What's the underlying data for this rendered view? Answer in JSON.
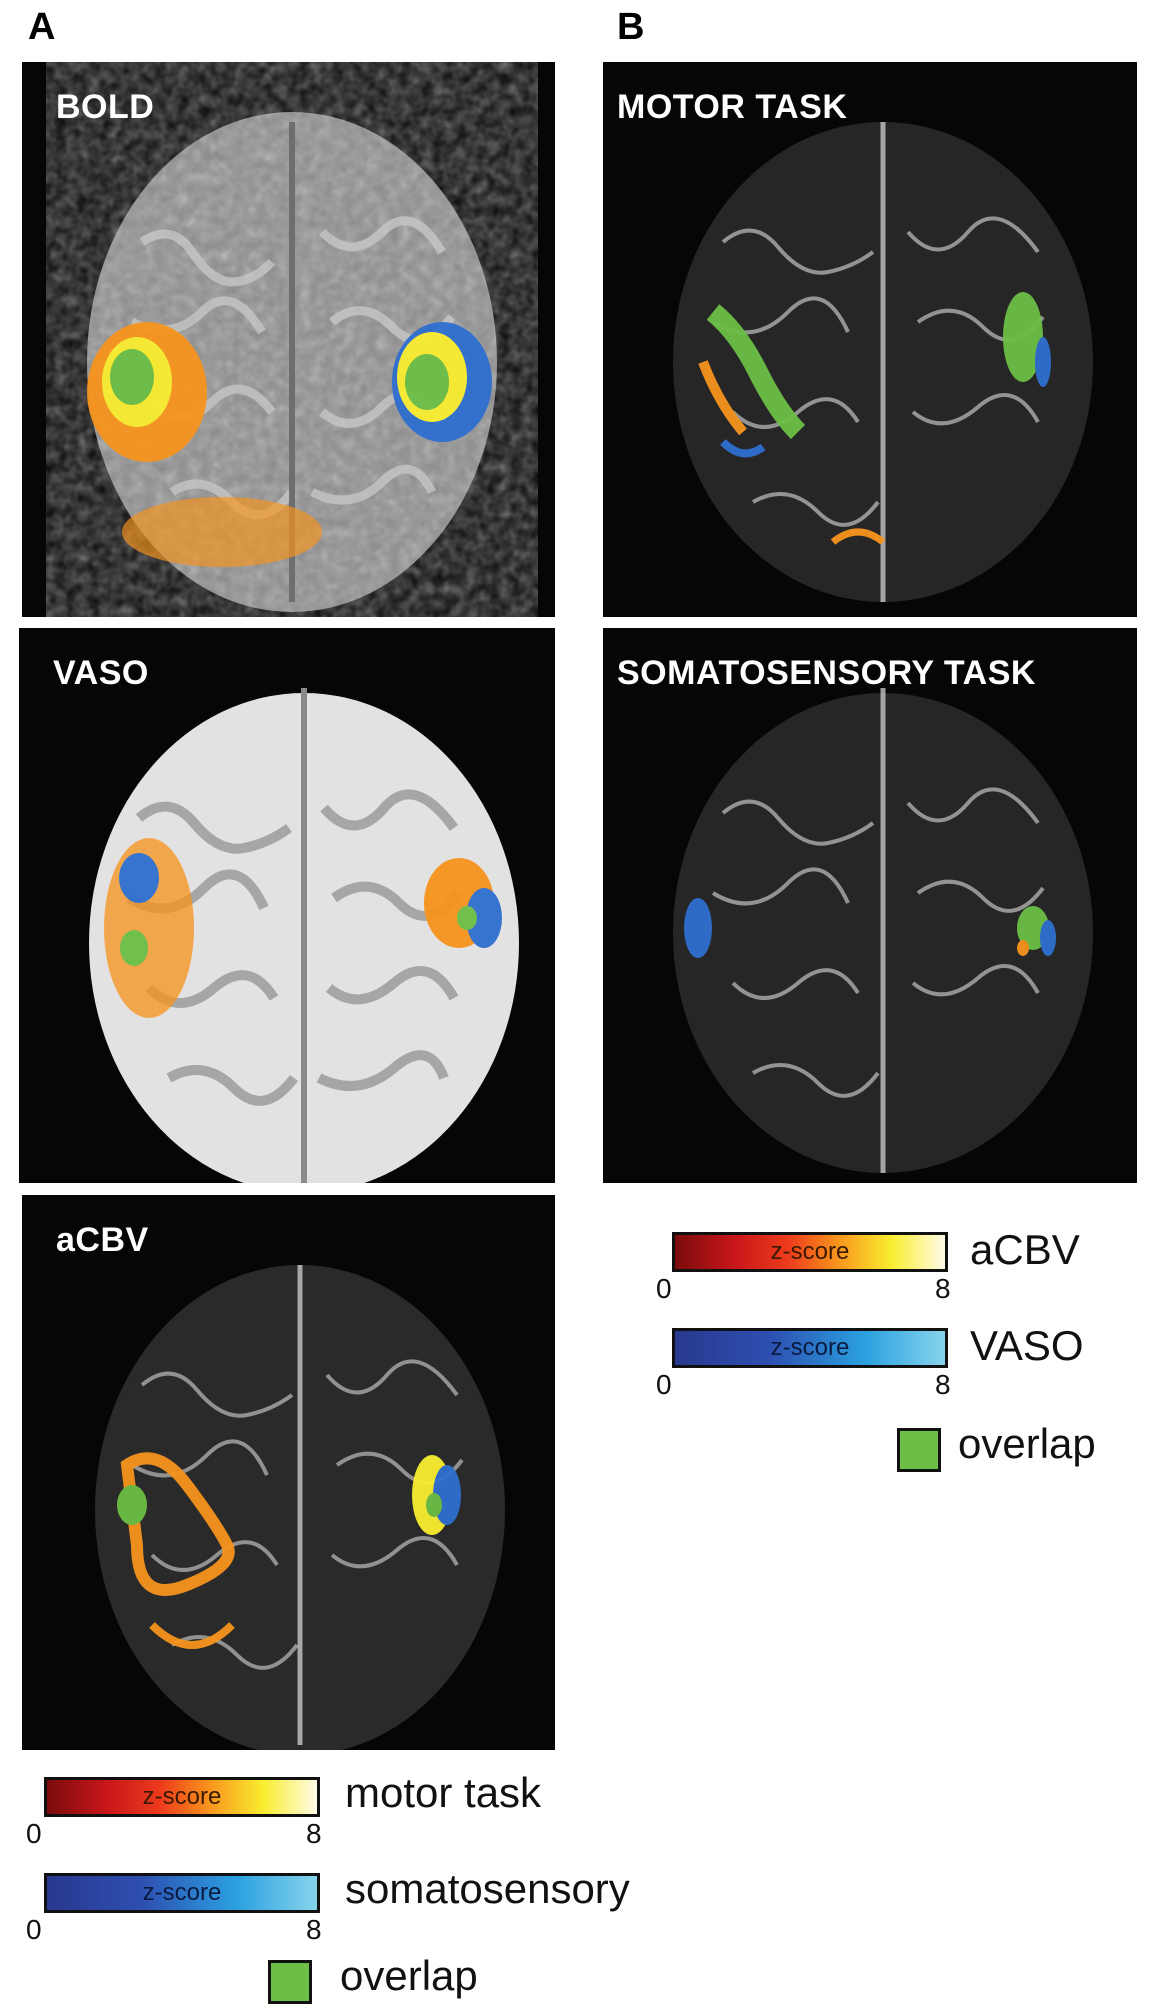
{
  "panel_letters": {
    "a": "A",
    "b": "B"
  },
  "panels": {
    "bold": {
      "title": "BOLD"
    },
    "vaso": {
      "title": "VASO"
    },
    "acbv": {
      "title": "aCBV"
    },
    "motor": {
      "title": "MOTOR TASK"
    },
    "somato": {
      "title": "SOMATOSENSORY TASK"
    }
  },
  "legend_a": {
    "bar_hot": {
      "text": "z-score",
      "min": "0",
      "max": "8",
      "label": "motor task"
    },
    "bar_cool": {
      "text": "z-score",
      "min": "0",
      "max": "8",
      "label": "somatosensory"
    },
    "overlap": "overlap"
  },
  "legend_b": {
    "bar_hot": {
      "text": "z-score",
      "min": "0",
      "max": "8",
      "label": "aCBV"
    },
    "bar_cool": {
      "text": "z-score",
      "min": "0",
      "max": "8",
      "label": "VASO"
    },
    "overlap": "overlap"
  },
  "colors": {
    "motor_activation": "#f7941d",
    "somatosensory_activation": "#2e6fd0",
    "overlap": "#6cbe45"
  }
}
